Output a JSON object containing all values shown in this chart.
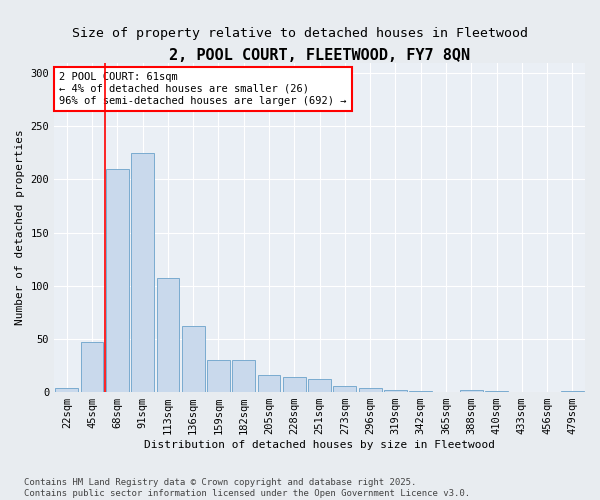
{
  "title": "2, POOL COURT, FLEETWOOD, FY7 8QN",
  "subtitle": "Size of property relative to detached houses in Fleetwood",
  "xlabel": "Distribution of detached houses by size in Fleetwood",
  "ylabel": "Number of detached properties",
  "categories": [
    "22sqm",
    "45sqm",
    "68sqm",
    "91sqm",
    "113sqm",
    "136sqm",
    "159sqm",
    "182sqm",
    "205sqm",
    "228sqm",
    "251sqm",
    "273sqm",
    "296sqm",
    "319sqm",
    "342sqm",
    "365sqm",
    "388sqm",
    "410sqm",
    "433sqm",
    "456sqm",
    "479sqm"
  ],
  "values": [
    4,
    47,
    210,
    225,
    107,
    62,
    30,
    30,
    16,
    14,
    12,
    6,
    4,
    2,
    1,
    0,
    2,
    1,
    0,
    0,
    1
  ],
  "bar_color": "#c9d9ec",
  "bar_edge_color": "#7aabcf",
  "annotation_text_line1": "2 POOL COURT: 61sqm",
  "annotation_text_line2": "← 4% of detached houses are smaller (26)",
  "annotation_text_line3": "96% of semi-detached houses are larger (692) →",
  "annotation_box_color": "white",
  "annotation_box_edge_color": "red",
  "vline_color": "red",
  "vline_x": 1.5,
  "ylim": [
    0,
    310
  ],
  "yticks": [
    0,
    50,
    100,
    150,
    200,
    250,
    300
  ],
  "bg_color": "#e8ecf0",
  "plot_bg_color": "#eaeff5",
  "footnote": "Contains HM Land Registry data © Crown copyright and database right 2025.\nContains public sector information licensed under the Open Government Licence v3.0.",
  "title_fontsize": 11,
  "subtitle_fontsize": 9.5,
  "label_fontsize": 8,
  "tick_fontsize": 7.5,
  "annot_fontsize": 7.5,
  "footnote_fontsize": 6.5
}
